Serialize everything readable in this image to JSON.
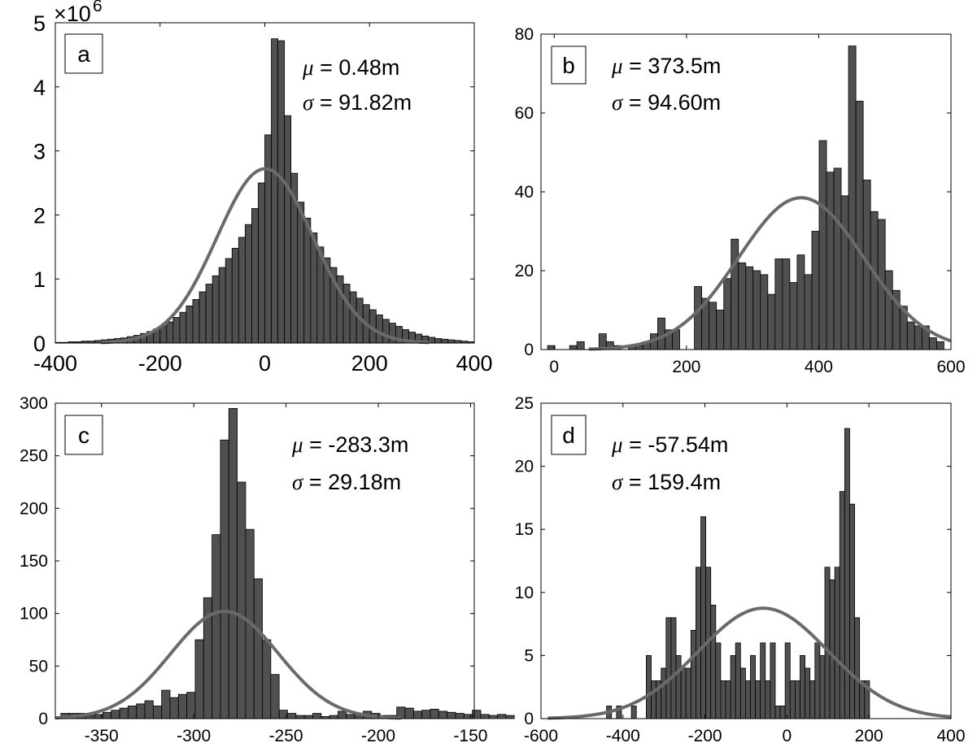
{
  "chart_data": [
    {
      "type": "bar",
      "panel_label": "a",
      "mu_label": "μ",
      "mu_text": " = 0.48m",
      "sigma_label": "σ",
      "sigma_text": " = 91.82m",
      "y_multiplier_prefix": "×10",
      "y_multiplier_exp": "6",
      "xlim": [
        -400,
        400
      ],
      "ylim": [
        0,
        5
      ],
      "xticks": [
        -400,
        -200,
        0,
        200,
        400
      ],
      "yticks": [
        0,
        1,
        2,
        3,
        4,
        5
      ],
      "bin_start": -400,
      "bin_width": 12.5,
      "values": [
        0.01,
        0.01,
        0.02,
        0.02,
        0.03,
        0.03,
        0.04,
        0.05,
        0.06,
        0.07,
        0.08,
        0.1,
        0.12,
        0.15,
        0.18,
        0.22,
        0.27,
        0.33,
        0.4,
        0.48,
        0.58,
        0.68,
        0.8,
        0.92,
        1.05,
        1.18,
        1.32,
        1.48,
        1.65,
        1.85,
        2.1,
        2.5,
        3.25,
        4.75,
        4.72,
        3.55,
        2.65,
        2.2,
        1.95,
        1.72,
        1.5,
        1.33,
        1.18,
        1.05,
        0.92,
        0.8,
        0.7,
        0.6,
        0.52,
        0.44,
        0.37,
        0.31,
        0.26,
        0.21,
        0.17,
        0.14,
        0.11,
        0.09,
        0.07,
        0.06,
        0.05,
        0.04,
        0.03,
        0.02
      ],
      "fit": {
        "mu": 0.48,
        "sigma": 91.82,
        "peak": 2.72
      }
    },
    {
      "type": "bar",
      "panel_label": "b",
      "mu_label": "μ",
      "mu_text": " = 373.5m",
      "sigma_label": "σ",
      "sigma_text": " = 94.60m",
      "xlim": [
        -20,
        600
      ],
      "ylim": [
        0,
        80
      ],
      "xticks": [
        0,
        200,
        400,
        600
      ],
      "yticks": [
        0,
        20,
        40,
        60,
        80
      ],
      "bin_start": -10,
      "bin_width": 11.1,
      "values": [
        1,
        0,
        0,
        1,
        2,
        0,
        0,
        4,
        2,
        1,
        0,
        1,
        1,
        2,
        4,
        8,
        5,
        5,
        0,
        0,
        16,
        13,
        12,
        10,
        18,
        28,
        22,
        21,
        20,
        19,
        14,
        23,
        23,
        17,
        24,
        19,
        30,
        53,
        45,
        46,
        39,
        77,
        63,
        43,
        35,
        33,
        20,
        15,
        11,
        7,
        6,
        6,
        3,
        2,
        0
      ],
      "fit": {
        "mu": 373.5,
        "sigma": 94.6,
        "peak": 38.5
      }
    },
    {
      "type": "bar",
      "panel_label": "c",
      "mu_label": "μ",
      "mu_text": " = -283.3m",
      "sigma_label": "σ",
      "sigma_text": " = 29.18m",
      "xlim": [
        -375,
        -148
      ],
      "ylim": [
        0,
        300
      ],
      "xticks": [
        -350,
        -300,
        -250,
        -200,
        -150
      ],
      "yticks": [
        0,
        50,
        100,
        150,
        200,
        250,
        300
      ],
      "bin_start": -372,
      "bin_width": 4.55,
      "values": [
        5,
        5,
        5,
        3,
        4,
        6,
        8,
        10,
        12,
        14,
        17,
        12,
        27,
        20,
        23,
        25,
        75,
        115,
        175,
        265,
        295,
        225,
        180,
        133,
        75,
        42,
        8,
        5,
        3,
        3,
        5,
        2,
        3,
        7,
        4,
        5,
        7,
        5,
        3,
        3,
        11,
        10,
        7,
        8,
        9,
        7,
        6,
        5,
        4,
        8,
        4,
        3,
        4,
        3
      ],
      "fit": {
        "mu": -283.3,
        "sigma": 29.18,
        "peak": 102
      }
    },
    {
      "type": "bar",
      "panel_label": "d",
      "mu_label": "μ",
      "mu_text": " = -57.54m",
      "sigma_label": "σ",
      "sigma_text": " = 159.4m",
      "xlim": [
        -600,
        400
      ],
      "ylim": [
        0,
        25
      ],
      "xticks": [
        -600,
        -400,
        -200,
        0,
        200,
        400
      ],
      "yticks": [
        0,
        5,
        10,
        15,
        20,
        25
      ],
      "bin_start": -440,
      "bin_width": 12.1,
      "values": [
        1,
        0,
        1,
        0,
        0,
        1,
        0,
        0,
        5,
        3,
        3,
        4,
        8,
        8,
        5,
        4,
        4,
        7,
        12,
        16,
        12,
        9,
        6,
        3,
        3,
        5,
        6,
        4,
        3,
        5,
        3,
        6,
        3,
        6,
        1,
        1,
        6,
        3,
        3,
        5,
        4,
        3,
        6,
        5,
        12,
        11,
        12,
        18,
        23,
        17,
        8,
        3,
        3
      ],
      "fit": {
        "mu": -57.54,
        "sigma": 159.4,
        "peak": 8.75
      }
    }
  ],
  "style": {
    "bar_fill": "#505050",
    "bar_edge": "#000000",
    "fit_color": "#6a6a6a"
  }
}
